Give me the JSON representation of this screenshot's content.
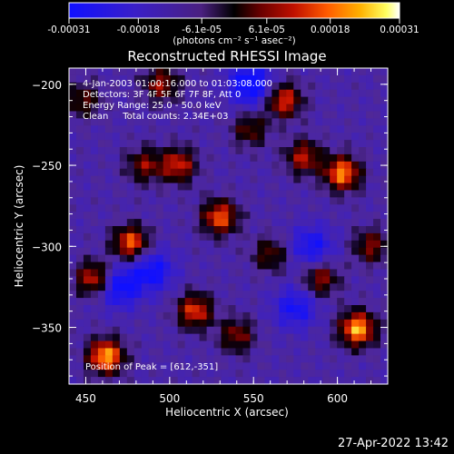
{
  "chart_data": {
    "type": "heatmap",
    "title": "Reconstructed RHESSI Image",
    "xlabel": "Heliocentric X (arcsec)",
    "ylabel": "Heliocentric Y (arcsec)",
    "xlim": [
      440,
      630
    ],
    "ylim": [
      -385,
      -190
    ],
    "x_ticks": [
      450,
      500,
      550,
      600
    ],
    "y_ticks": [
      -200,
      -250,
      -300,
      -350
    ],
    "x_tick_labels": [
      "450",
      "500",
      "550",
      "600"
    ],
    "y_tick_labels": [
      "−200",
      "−250",
      "−300",
      "−350"
    ],
    "colorbar": {
      "ticks": [
        -0.00031,
        -0.00018,
        -6.1e-05,
        6.1e-05,
        0.00018,
        0.00031
      ],
      "tick_labels": [
        "-0.00031",
        "-0.00018",
        "-6.1e-05",
        "6.1e-05",
        "0.00018",
        "0.00031"
      ],
      "range": [
        -0.00031,
        0.00031
      ],
      "unit_label": "(photons cm⁻² s⁻¹ asec⁻²)"
    },
    "colors": {
      "scale": [
        "#1010ff",
        "#3a1fc8",
        "#5a2a9a",
        "#000000",
        "#6a0000",
        "#c01000",
        "#ff5a00",
        "#ffb000",
        "#ffff60",
        "#ffffff"
      ]
    },
    "annotations": {
      "time": "4-Jan-2003 01:00:16.000 to 01:03:08.000",
      "detectors": "Detectors: 3F 4F 5F 6F 7F 8F, Att 0",
      "energy": "Energy Range: 25.0 - 50.0 keV",
      "clean": "Clean     Total counts: 2.34E+03",
      "peak": "Position of Peak = [612,-351]"
    },
    "hotspots": [
      {
        "x": 462,
        "y": -368,
        "v": 0.00031
      },
      {
        "x": 612,
        "y": -351,
        "v": 0.00031
      },
      {
        "x": 603,
        "y": -255,
        "v": 0.00028
      },
      {
        "x": 568,
        "y": -210,
        "v": 0.00022
      },
      {
        "x": 530,
        "y": -282,
        "v": 0.00024
      },
      {
        "x": 477,
        "y": -298,
        "v": 0.00025
      },
      {
        "x": 505,
        "y": -250,
        "v": 0.0002
      },
      {
        "x": 455,
        "y": -320,
        "v": 0.00022
      },
      {
        "x": 580,
        "y": -245,
        "v": 0.00018
      },
      {
        "x": 515,
        "y": -340,
        "v": 0.00022
      },
      {
        "x": 560,
        "y": -305,
        "v": 0.00012
      },
      {
        "x": 485,
        "y": -250,
        "v": 0.00014
      },
      {
        "x": 540,
        "y": -355,
        "v": 0.00014
      },
      {
        "x": 448,
        "y": -210,
        "v": 0.00012
      },
      {
        "x": 495,
        "y": -200,
        "v": 0.00016
      },
      {
        "x": 590,
        "y": -320,
        "v": 0.00016
      },
      {
        "x": 620,
        "y": -300,
        "v": 0.00014
      },
      {
        "x": 548,
        "y": -228,
        "v": 0.00012
      }
    ],
    "coldspots": [
      {
        "x": 548,
        "y": -200,
        "v": -0.00022
      },
      {
        "x": 470,
        "y": -325,
        "v": -0.00018
      },
      {
        "x": 490,
        "y": -315,
        "v": -0.00016
      },
      {
        "x": 585,
        "y": -300,
        "v": -0.00014
      },
      {
        "x": 575,
        "y": -338,
        "v": -0.00014
      }
    ]
  },
  "footer": {
    "timestamp": "27-Apr-2022 13:42"
  }
}
